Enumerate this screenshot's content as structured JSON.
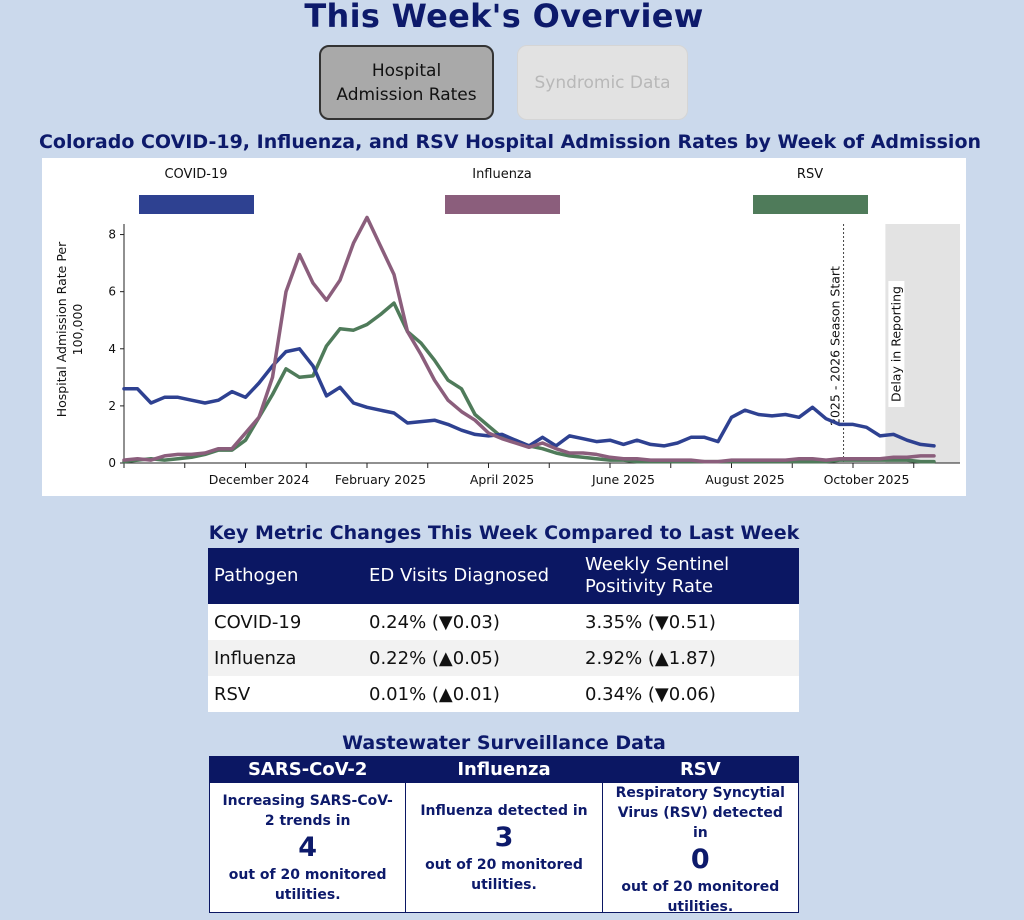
{
  "page_title": "This Week's Overview",
  "tabs": [
    {
      "label": "Hospital Admission Rates",
      "active": true
    },
    {
      "label": "Syndromic Data",
      "active": false
    }
  ],
  "chart": {
    "title": "Colorado COVID-19, Influenza, and RSV Hospital Admission Rates by Week of Admission"
  },
  "chart_data": {
    "type": "line",
    "title": "Colorado COVID-19, Influenza, and RSV Hospital Admission Rates by Week of Admission",
    "xlabel": "",
    "ylabel": "Hospital Admission Rate Per 100,000",
    "ylim": [
      0,
      9
    ],
    "yticks": [
      0,
      2,
      4,
      6,
      8
    ],
    "xtick_labels": [
      "December 2024",
      "February 2025",
      "April 2025",
      "June 2025",
      "August 2025",
      "October 2025"
    ],
    "xtick_index": [
      10,
      19,
      28,
      37,
      46,
      55
    ],
    "annotations": [
      "2025 - 2026 Season Start",
      "Delay in Reporting"
    ],
    "season_start_index": 53.3,
    "delay_start_index": 56.4,
    "x_count": 61,
    "series": [
      {
        "name": "COVID-19",
        "color": "#2e4191",
        "values": [
          2.6,
          2.6,
          2.1,
          2.3,
          2.3,
          2.2,
          2.1,
          2.2,
          2.5,
          2.3,
          2.8,
          3.4,
          3.9,
          4.0,
          3.4,
          2.35,
          2.65,
          2.1,
          1.95,
          1.85,
          1.75,
          1.4,
          1.45,
          1.5,
          1.35,
          1.15,
          1.0,
          0.95,
          1.0,
          0.8,
          0.6,
          0.9,
          0.6,
          0.95,
          0.85,
          0.75,
          0.8,
          0.65,
          0.8,
          0.65,
          0.6,
          0.7,
          0.9,
          0.9,
          0.75,
          1.6,
          1.85,
          1.7,
          1.65,
          1.7,
          1.6,
          1.95,
          1.55,
          1.35,
          1.35,
          1.25,
          0.95,
          1.0,
          0.8,
          0.65,
          0.6
        ]
      },
      {
        "name": "Influenza",
        "color": "#8b5e7c",
        "values": [
          0.1,
          0.15,
          0.1,
          0.25,
          0.3,
          0.3,
          0.35,
          0.5,
          0.5,
          1.05,
          1.6,
          3.0,
          6.0,
          7.3,
          6.3,
          5.7,
          6.4,
          7.7,
          8.6,
          7.6,
          6.6,
          4.6,
          3.8,
          2.9,
          2.2,
          1.8,
          1.5,
          1.05,
          0.85,
          0.7,
          0.55,
          0.7,
          0.5,
          0.35,
          0.35,
          0.3,
          0.2,
          0.15,
          0.15,
          0.1,
          0.1,
          0.1,
          0.1,
          0.05,
          0.05,
          0.1,
          0.1,
          0.1,
          0.1,
          0.1,
          0.15,
          0.15,
          0.1,
          0.15,
          0.15,
          0.15,
          0.15,
          0.2,
          0.2,
          0.25,
          0.25
        ]
      },
      {
        "name": "RSV",
        "color": "#4f7b5a",
        "values": [
          0.05,
          0.1,
          0.15,
          0.1,
          0.15,
          0.2,
          0.3,
          0.45,
          0.45,
          0.8,
          1.6,
          2.4,
          3.3,
          3.0,
          3.05,
          4.1,
          4.7,
          4.65,
          4.85,
          5.2,
          5.6,
          4.6,
          4.2,
          3.6,
          2.9,
          2.6,
          1.7,
          1.3,
          0.9,
          0.8,
          0.6,
          0.5,
          0.35,
          0.25,
          0.2,
          0.15,
          0.1,
          0.1,
          0.05,
          0.05,
          0.05,
          0.05,
          0.05,
          0.05,
          0.05,
          0.05,
          0.05,
          0.05,
          0.05,
          0.05,
          0.05,
          0.05,
          0.05,
          0.1,
          0.1,
          0.1,
          0.1,
          0.1,
          0.1,
          0.05,
          0.05
        ]
      }
    ]
  },
  "legend": [
    {
      "label": "COVID-19",
      "color": "#2e4191"
    },
    {
      "label": "Influenza",
      "color": "#8b5e7c"
    },
    {
      "label": "RSV",
      "color": "#4f7b5a"
    }
  ],
  "metrics": {
    "title": "Key Metric Changes This Week Compared to Last Week",
    "headers": [
      "Pathogen",
      "ED Visits Diagnosed",
      "Weekly Sentinel Positivity Rate"
    ],
    "rows": [
      [
        "COVID-19",
        "0.24% (▼0.03)",
        "3.35% (▼0.51)"
      ],
      [
        "Influenza",
        "0.22% (▲0.05)",
        "2.92% (▲1.87)"
      ],
      [
        "RSV",
        "0.01% (▲0.01)",
        "0.34% (▼0.06)"
      ]
    ]
  },
  "wastewater": {
    "title": "Wastewater Surveillance Data",
    "cards": [
      {
        "header": "SARS-CoV-2",
        "text_before": "Increasing SARS-CoV-2 trends in",
        "number": "4",
        "text_after": "out of 20 monitored utilities."
      },
      {
        "header": "Influenza",
        "text_before": "Influenza detected in",
        "number": "3",
        "text_after": "out of 20 monitored utilities."
      },
      {
        "header": "RSV",
        "text_before": "Respiratory Syncytial Virus (RSV) detected in",
        "number": "0",
        "text_after": "out of 20 monitored utilities."
      }
    ]
  }
}
